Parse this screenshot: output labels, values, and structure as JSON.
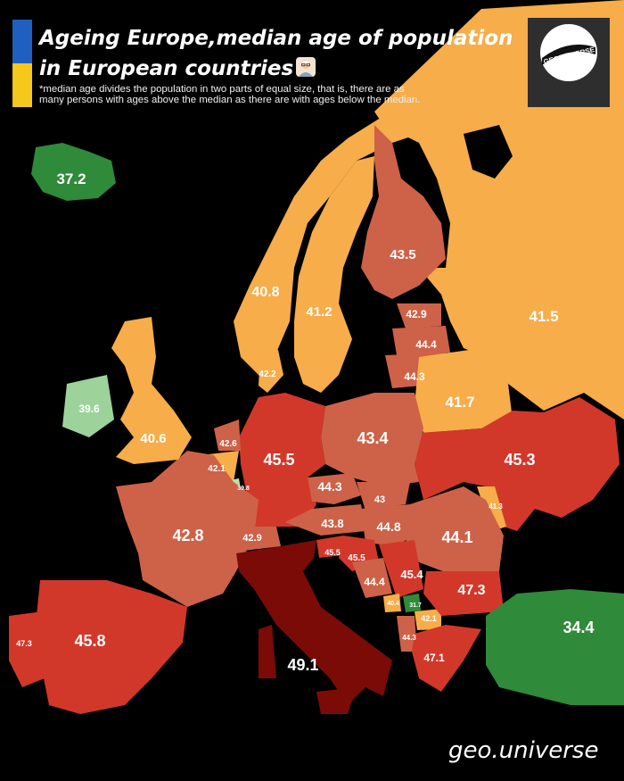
{
  "title": {
    "line1": "Ageing Europe,median age of population",
    "line2": "in European countries",
    "subtitle_line1": "*median age divides the population in two parts of equal size, that is, there are as",
    "subtitle_line2": "many persons with ages above the median as there are with ages below the median."
  },
  "logo": {
    "text": "GEOUNIVERSE",
    "icon": "globe-logo-icon"
  },
  "title_icon": "elderly-person-icon",
  "watermark": "geo.universe",
  "legend_colors": {
    "lowest": "#2f8a3a",
    "low": "#9dd39a",
    "light": "#bfe0a8",
    "medium": "#f6ad4a",
    "medium_high": "#cd6248",
    "high": "#d2382a",
    "highest": "#7b0b07"
  },
  "countries": {
    "iceland": "37.2",
    "norway": "40.8",
    "sweden": "41.2",
    "finland": "43.5",
    "russia": "41.5",
    "estonia": "42.9",
    "latvia": "44.4",
    "lithuania": "44.3",
    "belarus": "41.7",
    "denmark": "42.2",
    "ireland": "39.6",
    "united_kingdom": "40.6",
    "netherlands": "42.6",
    "belgium": "42.1",
    "luxembourg": "39.8",
    "germany": "45.5",
    "poland": "43.4",
    "ukraine": "45.3",
    "czechia": "44.3",
    "slovakia": "43",
    "moldova": "41.3",
    "france": "42.8",
    "switzerland": "42.9",
    "austria": "43.8",
    "hungary": "44.8",
    "romania": "44.1",
    "slovenia": "45.5",
    "croatia": "45.5",
    "serbia": "45.4",
    "bosnia": "44.4",
    "bulgaria": "47.3",
    "montenegro": "40.4",
    "kosovo": "31.7",
    "north_macedonia": "42.1",
    "albania": "44.3",
    "greece": "47.1",
    "turkey": "34.4",
    "italy": "49.1",
    "spain": "45.8",
    "portugal": "47.3"
  }
}
